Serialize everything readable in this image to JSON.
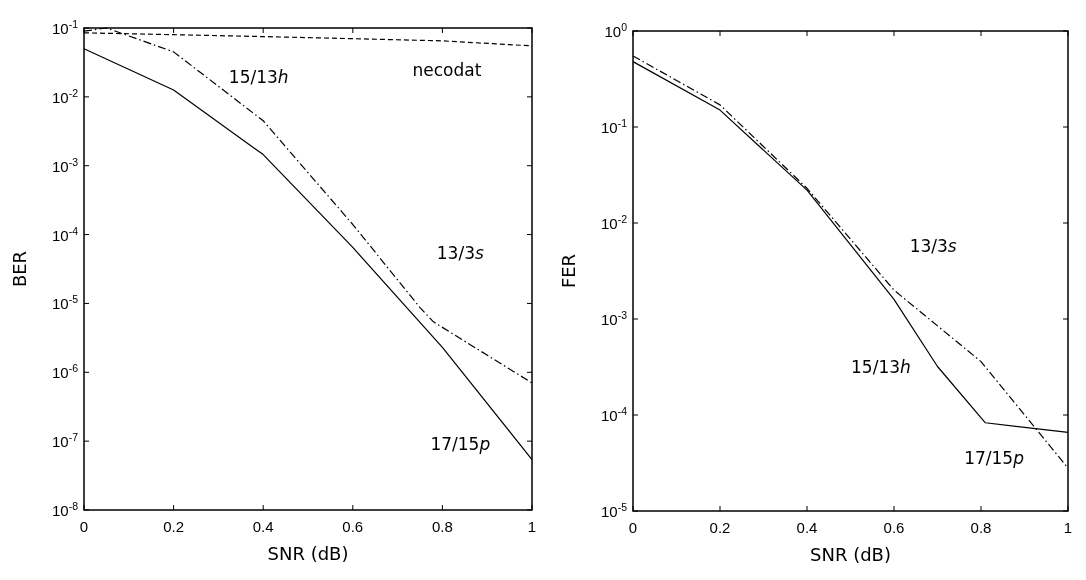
{
  "chart_data": [
    {
      "type": "line",
      "xlabel": "SNR (dB)",
      "ylabel": "BER",
      "log": "y",
      "grid": false,
      "xlim": [
        0,
        1
      ],
      "xticks": [
        0,
        0.2,
        0.4,
        0.6,
        0.8,
        1
      ],
      "ylim": [
        1e-08,
        0.1
      ],
      "yticks": [
        {
          "value": 1e-08,
          "label": "10$^{-8}$"
        },
        {
          "value": 1e-07,
          "label": "10$^{-7}$"
        },
        {
          "value": 1e-06,
          "label": "10$^{-6}$"
        },
        {
          "value": 1e-05,
          "label": "10$^{-5}$"
        },
        {
          "value": 0.0001,
          "label": "10$^{-4}$"
        },
        {
          "value": 0.001,
          "label": "10$^{-3}$"
        },
        {
          "value": 0.01,
          "label": "10$^{-2}$"
        },
        {
          "value": 0.1,
          "label": "10$^{-1}$"
        }
      ],
      "series": [
        {
          "color": "#000000",
          "line_style": "dashed",
          "x": [
            0,
            0.2,
            0.4,
            0.6,
            0.8,
            1
          ],
          "values": [
            0.085,
            0.08,
            0.075,
            0.07,
            0.065,
            0.055
          ]
        },
        {
          "color": "#000000",
          "line_style": "solid",
          "x": [
            0,
            0.2,
            0.4,
            0.6,
            0.8,
            1
          ],
          "values": [
            0.05,
            0.0126,
            0.00145,
            6.5e-05,
            2.3e-06,
            5.4e-08
          ]
        },
        {
          "color": "#000000",
          "line_style": "dotted",
          "x": [
            0,
            0.05,
            0.2,
            0.4,
            0.6,
            0.75,
            0.78,
            1
          ],
          "values": [
            0.09,
            0.1,
            0.045,
            0.0045,
            0.00014,
            8.7e-06,
            5.4e-06,
            7e-07
          ]
        }
      ],
      "annotations": [
        "necodat",
        "15/13h",
        "13/3s",
        "17/15p"
      ]
    },
    {
      "type": "line",
      "xlabel": "SNR (dB)",
      "ylabel": "FER",
      "log": "y",
      "grid": false,
      "xlim": [
        0,
        1
      ],
      "xticks": [
        0,
        0.2,
        0.4,
        0.6,
        0.8,
        1
      ],
      "ylim": [
        1e-05,
        1
      ],
      "yticks": [
        {
          "value": 1e-05,
          "label": "10$^{-5}$"
        },
        {
          "value": 0.0001,
          "label": "10$^{-4}$"
        },
        {
          "value": 0.001,
          "label": "10$^{-3}$"
        },
        {
          "value": 0.01,
          "label": "10$^{-2}$"
        },
        {
          "value": 0.1,
          "label": "10$^{-1}$"
        },
        {
          "value": 1,
          "label": "10$^{0}$"
        }
      ],
      "series": [
        {
          "color": "#000000",
          "line_style": "solid",
          "x": [
            0,
            0.2,
            0.4,
            0.6,
            0.7,
            0.81,
            1
          ],
          "values": [
            0.48,
            0.15,
            0.022,
            0.0016,
            0.00032,
            8.3e-05,
            6.6e-05
          ]
        },
        {
          "color": "#000000",
          "line_style": "dotted",
          "x": [
            0,
            0.2,
            0.4,
            0.6,
            0.8,
            1
          ],
          "values": [
            0.55,
            0.17,
            0.023,
            0.002,
            0.00036,
            2.8e-05
          ]
        }
      ],
      "annotations": [
        "13/3s",
        "15/13h",
        "17/15p"
      ]
    }
  ]
}
